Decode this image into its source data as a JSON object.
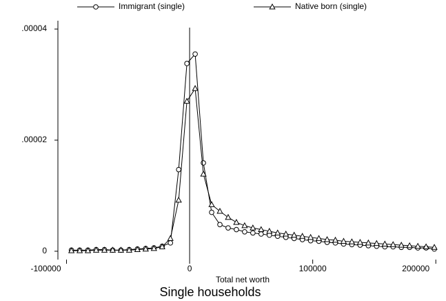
{
  "chart_data": {
    "type": "line",
    "title": "Single households",
    "x_label": "Total net worth",
    "x": [
      -96000,
      -89300,
      -82600,
      -75900,
      -69200,
      -62500,
      -55800,
      -49100,
      -42400,
      -35700,
      -29000,
      -22300,
      -15600,
      -8900,
      -2200,
      4500,
      11200,
      17900,
      24600,
      31300,
      38000,
      44700,
      51400,
      58100,
      64800,
      71500,
      78200,
      84900,
      91600,
      98300,
      105000,
      111700,
      118400,
      125100,
      131800,
      138500,
      145200,
      151900,
      158600,
      165300,
      172000,
      178700,
      185400,
      192100,
      198800
    ],
    "series": [
      {
        "name": "Immigrant (single)",
        "color": "#000000",
        "marker": "circle",
        "values": [
          2e-07,
          2e-07,
          2e-07,
          3e-07,
          3e-07,
          2e-07,
          2e-07,
          3e-07,
          4e-07,
          5e-07,
          6e-07,
          9e-07,
          1.5e-06,
          1.47e-05,
          3.38e-05,
          3.55e-05,
          1.59e-05,
          7e-06,
          4.8e-06,
          4.2e-06,
          3.9e-06,
          3.5e-06,
          3.3e-06,
          3.1e-06,
          2.9e-06,
          2.7e-06,
          2.5e-06,
          2.3e-06,
          2.1e-06,
          1.9e-06,
          1.8e-06,
          1.6e-06,
          1.5e-06,
          1.3e-06,
          1.2e-06,
          1.1e-06,
          1e-06,
          9e-07,
          8e-07,
          8e-07,
          7e-07,
          7e-07,
          6e-07,
          6e-07,
          4e-07
        ]
      },
      {
        "name": "Native born (single)",
        "color": "#000000",
        "marker": "triangle",
        "values": [
          1e-07,
          1e-07,
          1e-07,
          2e-07,
          2e-07,
          2e-07,
          2e-07,
          2e-07,
          3e-07,
          4e-07,
          5e-07,
          8e-07,
          2.3e-06,
          9.2e-06,
          2.7e-05,
          2.93e-05,
          1.39e-05,
          8.4e-06,
          7.2e-06,
          6.1e-06,
          5.2e-06,
          4.6e-06,
          4.2e-06,
          3.9e-06,
          3.6e-06,
          3.3e-06,
          3.1e-06,
          2.9e-06,
          2.7e-06,
          2.5e-06,
          2.3e-06,
          2.1e-06,
          2e-06,
          1.8e-06,
          1.7e-06,
          1.6e-06,
          1.5e-06,
          1.4e-06,
          1.3e-06,
          1.2e-06,
          1.1e-06,
          1e-06,
          9e-07,
          8e-07,
          7e-07
        ]
      }
    ],
    "xlim": [
      -107000,
      201000
    ],
    "xticks": [
      -100000,
      0,
      100000,
      200000
    ],
    "ylim": [
      -1.5e-06,
      4.15e-05
    ],
    "yticks": [
      0,
      {
        "value": 2e-05,
        "label": ".00002"
      },
      {
        "value": 4e-05,
        "label": ".00004"
      }
    ],
    "xline": 0,
    "legend": "top"
  }
}
